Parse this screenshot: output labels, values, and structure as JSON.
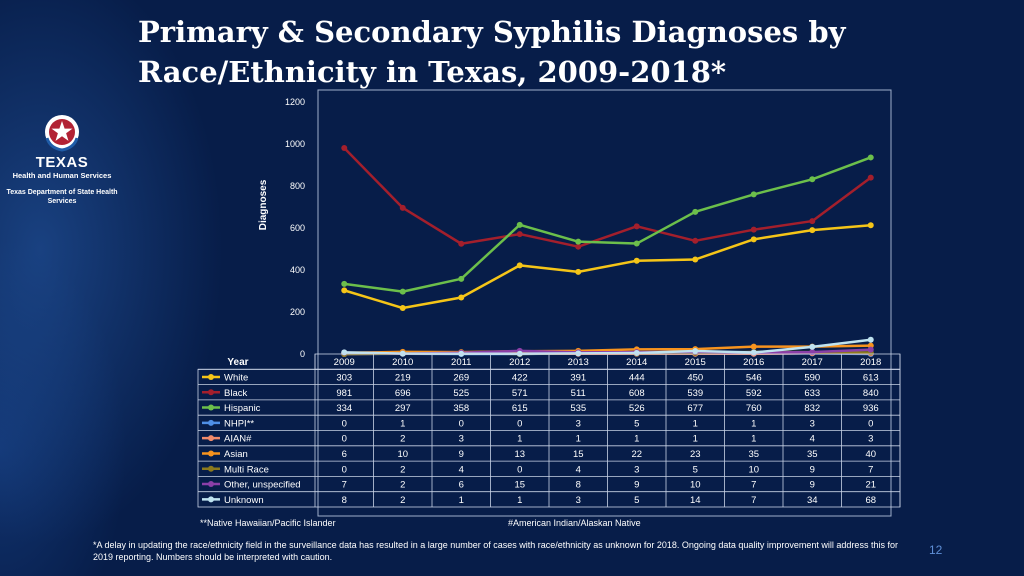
{
  "title": "Primary & Secondary Syphilis Diagnoses by Race/Ethnicity in Texas, 2009-2018*",
  "logo": {
    "state": "TEXAS",
    "agency": "Health and Human Services",
    "department": "Texas Department of State Health Services"
  },
  "chart_data": {
    "type": "line",
    "title": "Primary & Secondary Syphilis Diagnoses by Race/Ethnicity in Texas, 2009-2018*",
    "xlabel": "Year",
    "ylabel": "Diagnoses",
    "ylim": [
      0,
      1200
    ],
    "yticks": [
      0,
      200,
      400,
      600,
      800,
      1000,
      1200
    ],
    "x": [
      "2009",
      "2010",
      "2011",
      "2012",
      "2013",
      "2014",
      "2015",
      "2016",
      "2017",
      "2018"
    ],
    "series": [
      {
        "name": "White",
        "color": "#f5c518",
        "values": [
          303,
          219,
          269,
          422,
          391,
          444,
          450,
          546,
          590,
          613
        ]
      },
      {
        "name": "Black",
        "color": "#a31f2c",
        "values": [
          981,
          696,
          525,
          571,
          511,
          608,
          539,
          592,
          633,
          840
        ]
      },
      {
        "name": "Hispanic",
        "color": "#6cbf4b",
        "values": [
          334,
          297,
          358,
          615,
          535,
          526,
          677,
          760,
          832,
          936
        ]
      },
      {
        "name": "NHPI**",
        "color": "#4f8fe6",
        "values": [
          0,
          1,
          0,
          0,
          3,
          5,
          1,
          1,
          3,
          0
        ]
      },
      {
        "name": "AIAN#",
        "color": "#f28b6b",
        "values": [
          0,
          2,
          3,
          1,
          1,
          1,
          1,
          1,
          4,
          3
        ]
      },
      {
        "name": "Asian",
        "color": "#f7931e",
        "values": [
          6,
          10,
          9,
          13,
          15,
          22,
          23,
          35,
          35,
          40
        ]
      },
      {
        "name": "Multi Race",
        "color": "#8c7a1e",
        "values": [
          0,
          2,
          4,
          0,
          4,
          3,
          5,
          10,
          9,
          7
        ]
      },
      {
        "name": "Other, unspecified",
        "color": "#8b3fa8",
        "values": [
          7,
          2,
          6,
          15,
          8,
          9,
          10,
          7,
          9,
          21
        ]
      },
      {
        "name": "Unknown",
        "color": "#bfe3f0",
        "values": [
          8,
          2,
          1,
          1,
          3,
          5,
          14,
          7,
          34,
          68
        ]
      }
    ]
  },
  "notes": {
    "nhpi": "**Native Hawaiian/Pacific Islander",
    "aian": "#American Indian/Alaskan Native"
  },
  "footnote": "*A delay in updating the race/ethnicity field in the surveillance data has resulted in a large number of cases with race/ethnicity as unknown for 2018. Ongoing data quality improvement will address this for 2019 reporting. Numbers should be interpreted with caution.",
  "page_number": "12"
}
